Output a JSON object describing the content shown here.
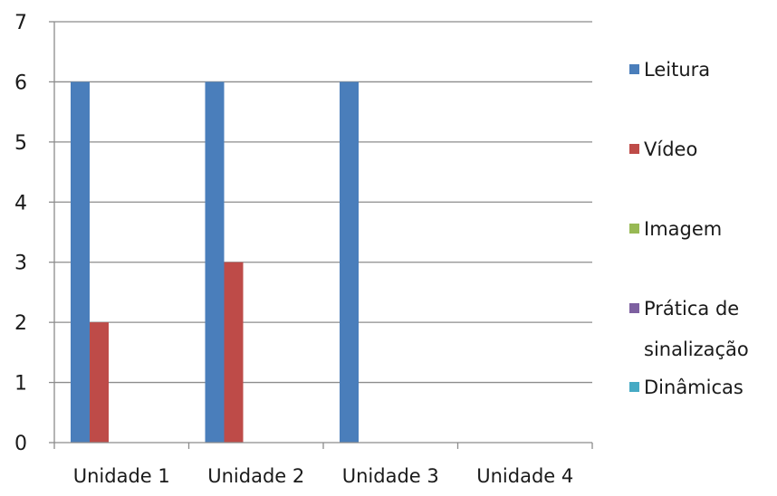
{
  "chart_data": {
    "type": "bar",
    "title": "",
    "xlabel": "",
    "ylabel": "",
    "categories": [
      "Unidade 1",
      "Unidade 2",
      "Unidade 3",
      "Unidade 4"
    ],
    "series": [
      {
        "name": "Leitura",
        "color": "#4a7ebb",
        "values": [
          6,
          6,
          6,
          0
        ]
      },
      {
        "name": "Vídeo",
        "color": "#be4b48",
        "values": [
          2,
          3,
          0,
          0
        ]
      },
      {
        "name": "Imagem",
        "color": "#98b954",
        "values": [
          0,
          0,
          0,
          0
        ]
      },
      {
        "name": "Prática de sinalização",
        "color": "#7d60a0",
        "values": [
          0,
          0,
          0,
          0
        ]
      },
      {
        "name": "Dinâmicas",
        "color": "#46aac4",
        "values": [
          0,
          0,
          0,
          0
        ]
      }
    ],
    "ylim": [
      0,
      7
    ],
    "yticks": [
      0,
      1,
      2,
      3,
      4,
      5,
      6,
      7
    ],
    "grid": true,
    "legend_position": "right"
  }
}
